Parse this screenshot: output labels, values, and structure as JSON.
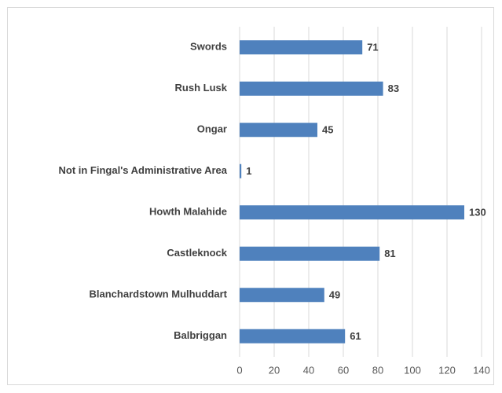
{
  "chart_data": {
    "type": "bar",
    "orientation": "horizontal",
    "categories": [
      "Swords",
      "Rush Lusk",
      "Ongar",
      "Not in Fingal's Administrative Area",
      "Howth Malahide",
      "Castleknock",
      "Blanchardstown Mulhuddart",
      "Balbriggan"
    ],
    "values": [
      71,
      83,
      45,
      1,
      130,
      81,
      49,
      61
    ],
    "color": "#4f81bd",
    "xlim": [
      0,
      140
    ],
    "xticks": [
      0,
      20,
      40,
      60,
      80,
      100,
      120,
      140
    ],
    "grid": true,
    "data_labels": true
  }
}
